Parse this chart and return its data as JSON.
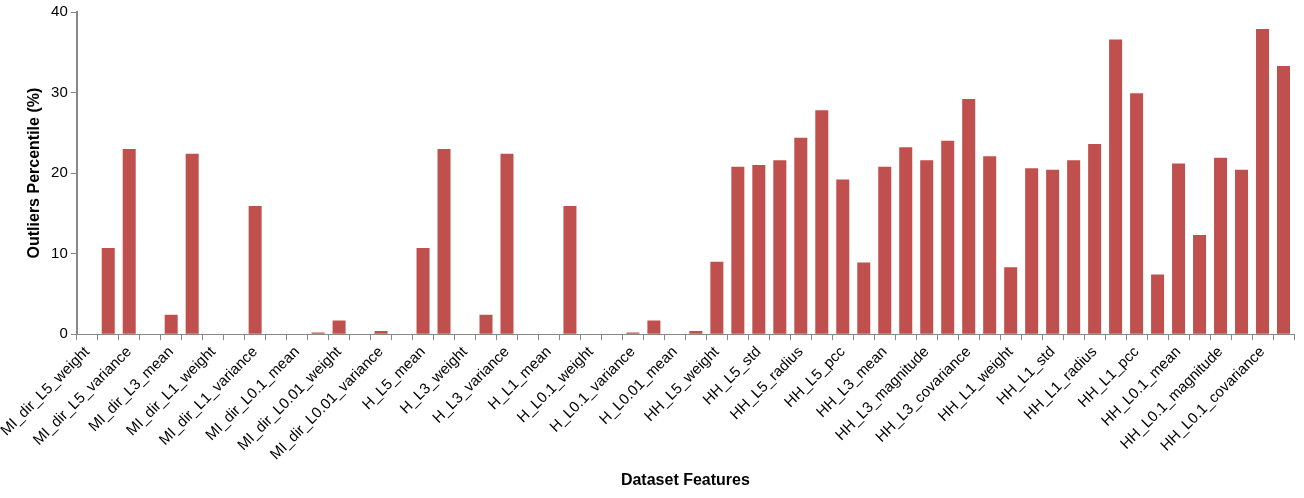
{
  "chart_data": {
    "type": "bar",
    "xlabel": "Dataset Features",
    "ylabel": "Outliers Percentile (%)",
    "categories": [
      "MI_dir_L5_weight",
      null,
      "MI_dir_L5_variance",
      null,
      "MI_dir_L3_mean",
      null,
      "MI_dir_L1_weight",
      null,
      "MI_dir_L1_variance",
      null,
      "MI_dir_L0.1_mean",
      null,
      "MI_dir_L0.01_weight",
      null,
      "MI_dir_L0.01_variance",
      null,
      "H_L5_mean",
      null,
      "H_L3_weight",
      null,
      "H_L3_variance",
      null,
      "H_L1_mean",
      null,
      "H_L0.1_weight",
      null,
      "H_L0.1_variance",
      null,
      "H_L0.01_mean",
      null,
      "HH_L5_weight",
      null,
      "HH_L5_std",
      null,
      "HH_L5_radius",
      null,
      "HH_L5_pcc",
      null,
      "HH_L3_mean",
      null,
      "HH_L3_magnitude",
      null,
      "HH_L3_covariance",
      null,
      "HH_L1_weight",
      null,
      "HH_L1_std",
      null,
      "HH_L1_radius",
      null,
      "HH_L1_pcc",
      null,
      "HH_L0.1_mean",
      null,
      "HH_L0.1_magnitude",
      null,
      "HH_L0.1_covariance",
      null
    ],
    "values": [
      0,
      10.7,
      23.0,
      0,
      2.4,
      22.4,
      0,
      0,
      15.9,
      0,
      0,
      0.2,
      1.7,
      0,
      0.4,
      0,
      10.7,
      23.0,
      0,
      2.4,
      22.4,
      0,
      0,
      15.9,
      0,
      0,
      0.2,
      1.7,
      0,
      0.4,
      9.0,
      20.8,
      21.0,
      21.6,
      24.4,
      27.8,
      19.2,
      8.9,
      20.8,
      23.2,
      21.6,
      24.0,
      29.2,
      22.1,
      8.3,
      20.6,
      20.4,
      21.6,
      23.6,
      36.6,
      29.9,
      7.4,
      21.2,
      12.3,
      21.9,
      20.4,
      37.9,
      33.3
    ],
    "color": "#c0504d",
    "ylim": [
      0,
      40
    ],
    "yticks": [
      0,
      10,
      20,
      30,
      40
    ],
    "grid": false
  }
}
